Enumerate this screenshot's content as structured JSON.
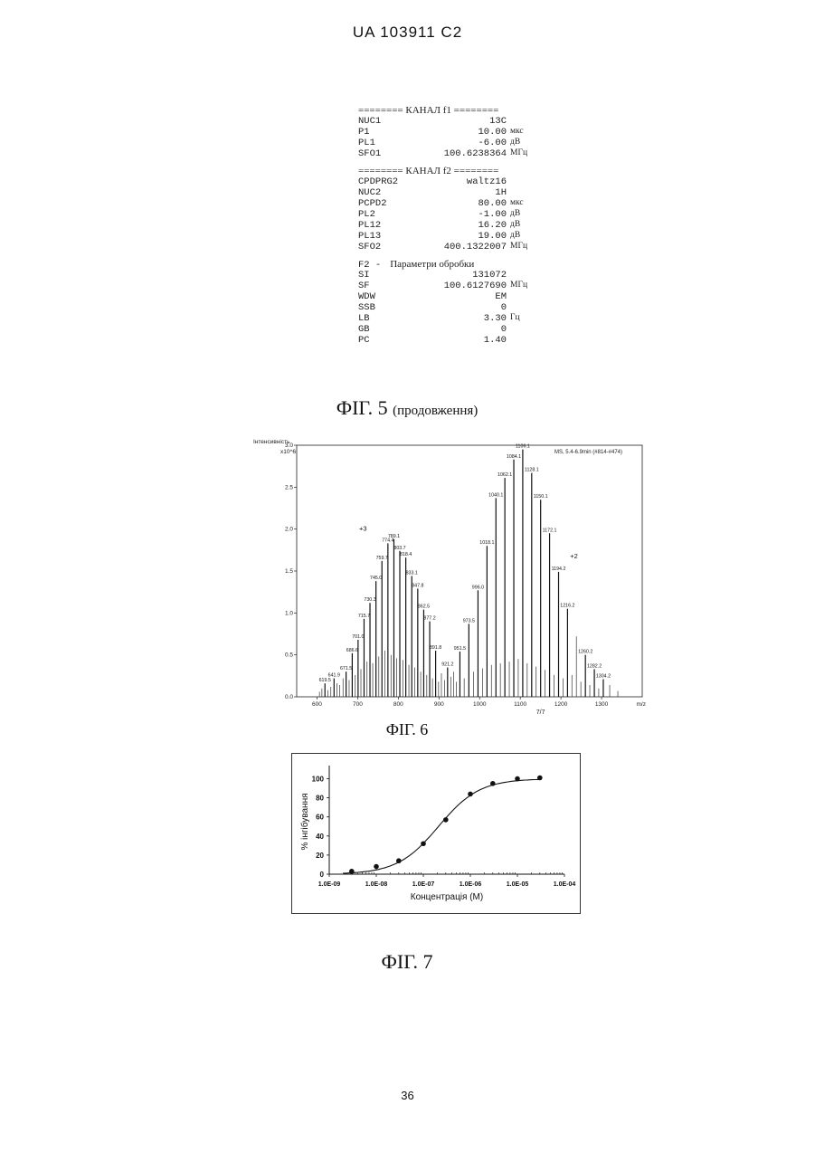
{
  "header": {
    "patent_id": "UA   103911   C2"
  },
  "fig5": {
    "channel_f1": {
      "separator": "======== КАНАЛ  f1 ========",
      "params": [
        {
          "key": "NUC1",
          "value": "13C",
          "unit": ""
        },
        {
          "key": "P1",
          "value": "10.00",
          "unit": "мкс"
        },
        {
          "key": "PL1",
          "value": "-6.00",
          "unit": "дВ"
        },
        {
          "key": "SFO1",
          "value": "100.6238364",
          "unit": "МГц"
        }
      ]
    },
    "channel_f2": {
      "separator": "======== КАНАЛ  f2 ========",
      "params": [
        {
          "key": "CPDPRG2",
          "value": "waltz16",
          "unit": ""
        },
        {
          "key": "NUC2",
          "value": "1H",
          "unit": ""
        },
        {
          "key": "PCPD2",
          "value": "80.00",
          "unit": "мкс"
        },
        {
          "key": "PL2",
          "value": "-1.00",
          "unit": "дВ"
        },
        {
          "key": "PL12",
          "value": "16.20",
          "unit": "дВ"
        },
        {
          "key": "PL13",
          "value": "19.00",
          "unit": "дВ"
        },
        {
          "key": "SFO2",
          "value": "400.1322007",
          "unit": "МГц"
        }
      ]
    },
    "processing": {
      "header_key": "F2 -",
      "header_label": "Параметри обробки",
      "params": [
        {
          "key": "SI",
          "value": "131072",
          "unit": ""
        },
        {
          "key": "SF",
          "value": "100.6127690",
          "unit": "МГц"
        },
        {
          "key": "WDW",
          "value": "EM",
          "unit": ""
        },
        {
          "key": "SSB",
          "value": "0",
          "unit": ""
        },
        {
          "key": "LB",
          "value": "3.30",
          "unit": "Гц"
        },
        {
          "key": "GB",
          "value": "0",
          "unit": ""
        },
        {
          "key": "PC",
          "value": "1.40",
          "unit": ""
        }
      ]
    },
    "caption": "ФІГ. 5",
    "caption_suffix": "(продовження)"
  },
  "chart_data": [
    {
      "type": "bar",
      "ylabel": "Інтенсивність",
      "y_multiplier": "x10^6",
      "annotation": "MS, 5.4-6.9min (#814-#474)",
      "xlim": [
        550,
        1400
      ],
      "ylim": [
        0,
        3.0
      ],
      "xticks": [
        "600",
        "700",
        "800",
        "900",
        "1000",
        "1100",
        "1200",
        "1300"
      ],
      "yticks": [
        "0.0",
        "0.5",
        "1.0",
        "1.5",
        "2.0",
        "2.5",
        "3.0"
      ],
      "x_unit_label": "m/z",
      "charge_labels": [
        {
          "text": "+3",
          "x": 713,
          "y": 1.98
        },
        {
          "text": "+2",
          "x": 1232,
          "y": 1.65
        }
      ],
      "peaks": [
        {
          "x": 619.5,
          "y": 0.16,
          "label": "619.5"
        },
        {
          "x": 641.9,
          "y": 0.22,
          "label": "641.9"
        },
        {
          "x": 671.5,
          "y": 0.3,
          "label": "671.5"
        },
        {
          "x": 686.6,
          "y": 0.52,
          "label": "686.6"
        },
        {
          "x": 701.0,
          "y": 0.68,
          "label": "701.0"
        },
        {
          "x": 715.7,
          "y": 0.93,
          "label": "715.7"
        },
        {
          "x": 730.3,
          "y": 1.12,
          "label": "730.3"
        },
        {
          "x": 745.0,
          "y": 1.38,
          "label": "745.0"
        },
        {
          "x": 759.7,
          "y": 1.62,
          "label": "759.7"
        },
        {
          "x": 774.4,
          "y": 1.83,
          "label": "774.4"
        },
        {
          "x": 789.1,
          "y": 1.88,
          "label": "789.1"
        },
        {
          "x": 803.7,
          "y": 1.74,
          "label": "803.7"
        },
        {
          "x": 818.4,
          "y": 1.66,
          "label": "818.4"
        },
        {
          "x": 833.1,
          "y": 1.44,
          "label": "833.1"
        },
        {
          "x": 847.8,
          "y": 1.29,
          "label": "847.8"
        },
        {
          "x": 862.5,
          "y": 1.04,
          "label": "862.5"
        },
        {
          "x": 877.2,
          "y": 0.9,
          "label": "877.2"
        },
        {
          "x": 891.8,
          "y": 0.55,
          "label": "891.8"
        },
        {
          "x": 921.2,
          "y": 0.35,
          "label": "921.2"
        },
        {
          "x": 951.5,
          "y": 0.54,
          "label": "951.5"
        },
        {
          "x": 973.5,
          "y": 0.87,
          "label": "973.5"
        },
        {
          "x": 996.0,
          "y": 1.27,
          "label": "996.0"
        },
        {
          "x": 1018.1,
          "y": 1.8,
          "label": "1018.1"
        },
        {
          "x": 1040.1,
          "y": 2.37,
          "label": "1040.1"
        },
        {
          "x": 1062.1,
          "y": 2.61,
          "label": "1062.1"
        },
        {
          "x": 1084.1,
          "y": 2.83,
          "label": "1084.1"
        },
        {
          "x": 1106.1,
          "y": 2.95,
          "label": "1106.1"
        },
        {
          "x": 1128.1,
          "y": 2.67,
          "label": "1128.1"
        },
        {
          "x": 1150.1,
          "y": 2.35,
          "label": "1150.1"
        },
        {
          "x": 1172.1,
          "y": 1.95,
          "label": "1172.1"
        },
        {
          "x": 1194.2,
          "y": 1.49,
          "label": "1194.2"
        },
        {
          "x": 1216.2,
          "y": 1.05,
          "label": "1216.2"
        },
        {
          "x": 1260.2,
          "y": 0.5,
          "label": "1260.2"
        },
        {
          "x": 1282.2,
          "y": 0.33,
          "label": "1282.2"
        },
        {
          "x": 1304.2,
          "y": 0.21,
          "label": "1304.2"
        }
      ],
      "minor_peaks": [
        {
          "x": 606,
          "y": 0.06
        },
        {
          "x": 612,
          "y": 0.1
        },
        {
          "x": 627,
          "y": 0.08
        },
        {
          "x": 634,
          "y": 0.12
        },
        {
          "x": 649,
          "y": 0.16
        },
        {
          "x": 656,
          "y": 0.14
        },
        {
          "x": 664,
          "y": 0.22
        },
        {
          "x": 679,
          "y": 0.2
        },
        {
          "x": 694,
          "y": 0.26
        },
        {
          "x": 708,
          "y": 0.33
        },
        {
          "x": 723,
          "y": 0.42
        },
        {
          "x": 737,
          "y": 0.4
        },
        {
          "x": 752,
          "y": 0.48
        },
        {
          "x": 767,
          "y": 0.55
        },
        {
          "x": 782,
          "y": 0.5
        },
        {
          "x": 796,
          "y": 0.46
        },
        {
          "x": 811,
          "y": 0.44
        },
        {
          "x": 826,
          "y": 0.38
        },
        {
          "x": 840,
          "y": 0.35
        },
        {
          "x": 855,
          "y": 0.3
        },
        {
          "x": 870,
          "y": 0.26
        },
        {
          "x": 884,
          "y": 0.22
        },
        {
          "x": 899,
          "y": 0.18
        },
        {
          "x": 906,
          "y": 0.28
        },
        {
          "x": 914,
          "y": 0.2
        },
        {
          "x": 929,
          "y": 0.24
        },
        {
          "x": 936,
          "y": 0.3
        },
        {
          "x": 943,
          "y": 0.18
        },
        {
          "x": 962,
          "y": 0.22
        },
        {
          "x": 985,
          "y": 0.3
        },
        {
          "x": 1007,
          "y": 0.34
        },
        {
          "x": 1029,
          "y": 0.38
        },
        {
          "x": 1051,
          "y": 0.4
        },
        {
          "x": 1073,
          "y": 0.42
        },
        {
          "x": 1095,
          "y": 0.45
        },
        {
          "x": 1117,
          "y": 0.4
        },
        {
          "x": 1139,
          "y": 0.36
        },
        {
          "x": 1161,
          "y": 0.32
        },
        {
          "x": 1183,
          "y": 0.26
        },
        {
          "x": 1205,
          "y": 0.22
        },
        {
          "x": 1227,
          "y": 0.26
        },
        {
          "x": 1238,
          "y": 0.72
        },
        {
          "x": 1249,
          "y": 0.18
        },
        {
          "x": 1271,
          "y": 0.14
        },
        {
          "x": 1293,
          "y": 0.1
        },
        {
          "x": 1320,
          "y": 0.14
        },
        {
          "x": 1340,
          "y": 0.07
        }
      ],
      "subscript_label": "7/7"
    },
    {
      "type": "scatter",
      "xlabel": "Концентрація (М)",
      "ylabel": "% інгібування",
      "x_scale": "log",
      "xlim": [
        "1.0E-09",
        "1.0E-04"
      ],
      "ylim": [
        0,
        110
      ],
      "xticks": [
        "1.0E-09",
        "1.0E-08",
        "1.0E-07",
        "1.0E-06",
        "1.0E-05",
        "1.0E-04"
      ],
      "yticks": [
        "0",
        "20",
        "40",
        "60",
        "80",
        "100"
      ],
      "points": [
        {
          "x": 3e-09,
          "y": 3
        },
        {
          "x": 1e-08,
          "y": 8
        },
        {
          "x": 3e-08,
          "y": 14
        },
        {
          "x": 1e-07,
          "y": 32
        },
        {
          "x": 3e-07,
          "y": 57
        },
        {
          "x": 1e-06,
          "y": 84
        },
        {
          "x": 3e-06,
          "y": 95
        },
        {
          "x": 1e-05,
          "y": 100
        },
        {
          "x": 3e-05,
          "y": 101
        }
      ],
      "fit": {
        "bottom": 0,
        "top": 100,
        "ec50": 2.1e-07,
        "hill": 1.0
      }
    }
  ],
  "fig6": {
    "caption": "ФІГ. 6"
  },
  "fig7": {
    "caption": "ФІГ. 7"
  },
  "footer": {
    "page_number": "36"
  }
}
